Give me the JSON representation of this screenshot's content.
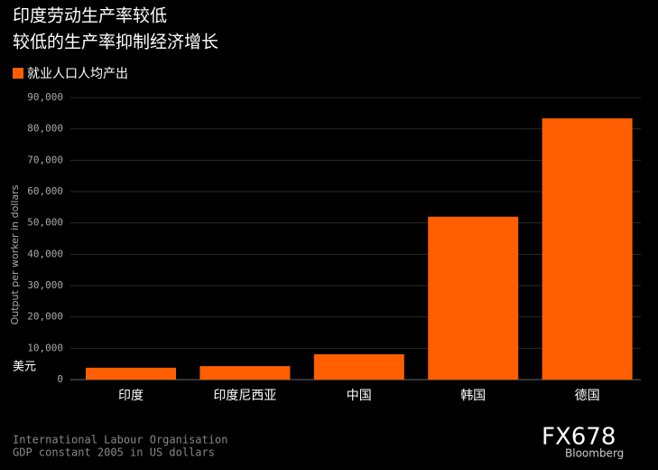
{
  "chart_data": {
    "type": "bar",
    "title": "印度劳动生产率较低",
    "subtitle": "较低的生产率抑制经济增长",
    "y_axis_label": "Output per worker in dollars",
    "y_unit": "美元",
    "categories": [
      "印度",
      "印度尼西亚",
      "中国",
      "韩国",
      "德国"
    ],
    "series": [
      {
        "name": "就业人口人均产出",
        "color": "#ff5f00",
        "values": [
          3800,
          4300,
          8100,
          52000,
          83400
        ]
      }
    ],
    "ylim": [
      0,
      90000
    ],
    "yticks": [
      0,
      {
        "value": 10000,
        "label": "10,000"
      },
      {
        "value": 20000,
        "label": "20,000"
      },
      {
        "value": 30000,
        "label": "30,000"
      },
      {
        "value": 40000,
        "label": "40,000"
      },
      {
        "value": 50000,
        "label": "50,000"
      },
      {
        "value": 60000,
        "label": "60,000"
      },
      {
        "value": 70000,
        "label": "70,000"
      },
      {
        "value": 80000,
        "label": "80,000"
      },
      {
        "value": 90000,
        "label": "90,000"
      }
    ],
    "grid": true,
    "source_lines": [
      "International Labour Organisation",
      "GDP constant 2005 in US dollars"
    ],
    "watermark": "FX678",
    "brand": "Bloomberg"
  }
}
